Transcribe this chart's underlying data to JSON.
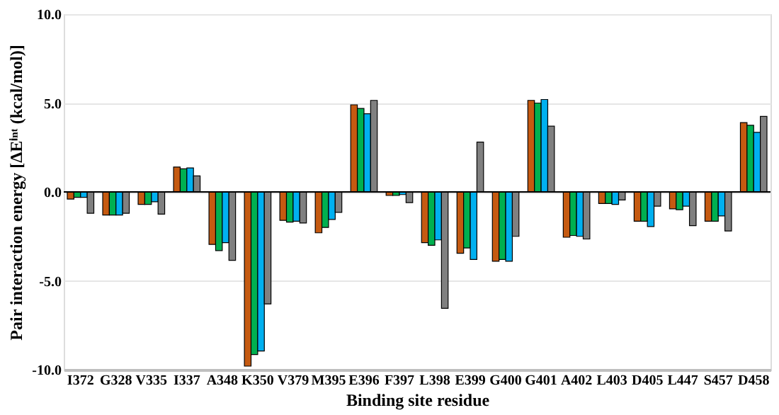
{
  "chart_data": {
    "type": "bar",
    "xlabel": "Binding site residue",
    "ylabel": "Pair interaction energy [ΔEⁱⁿᵗ (kcal/mol)]",
    "categories": [
      "I372",
      "G328",
      "V335",
      "I337",
      "A348",
      "K350",
      "V379",
      "M395",
      "E396",
      "F397",
      "L398",
      "E399",
      "G400",
      "G401",
      "A402",
      "L403",
      "D405",
      "L447",
      "S457",
      "D458"
    ],
    "series": [
      {
        "color": "#c55a11",
        "values": [
          -0.4,
          -1.3,
          -0.7,
          1.4,
          -2.95,
          -9.8,
          -1.6,
          -2.3,
          4.9,
          -0.2,
          -2.85,
          -3.45,
          -3.9,
          5.15,
          -2.55,
          -0.65,
          -1.65,
          -0.95,
          -1.65,
          3.9
        ]
      },
      {
        "color": "#00b050",
        "values": [
          -0.3,
          -1.3,
          -0.7,
          1.3,
          -3.3,
          -9.15,
          -1.7,
          -2.0,
          4.7,
          -0.2,
          -3.0,
          -3.15,
          -3.8,
          5.0,
          -2.45,
          -0.65,
          -1.65,
          -1.0,
          -1.65,
          3.75
        ]
      },
      {
        "color": "#00b0f0",
        "values": [
          -0.3,
          -1.3,
          -0.55,
          1.35,
          -2.85,
          -8.95,
          -1.65,
          -1.55,
          4.4,
          -0.15,
          -2.7,
          -3.8,
          -3.9,
          5.2,
          -2.5,
          -0.7,
          -1.95,
          -0.8,
          -1.35,
          3.35
        ]
      },
      {
        "color": "#808080",
        "values": [
          -1.2,
          -1.2,
          -1.25,
          0.9,
          -3.85,
          -6.3,
          -1.75,
          -1.15,
          5.15,
          -0.6,
          -6.55,
          2.8,
          -2.5,
          3.7,
          -2.65,
          -0.45,
          -0.8,
          -1.9,
          -2.2,
          4.25
        ]
      }
    ],
    "ylim": [
      -10,
      10
    ],
    "yticks": [
      {
        "value": -10,
        "label": "-10.0"
      },
      {
        "value": -5,
        "label": "-5.0"
      },
      {
        "value": 0,
        "label": "0.0"
      },
      {
        "value": 5,
        "label": "5.0"
      },
      {
        "value": 10,
        "label": "10.0"
      }
    ],
    "ref_lines": [
      {
        "axis": "y",
        "value": 0,
        "color": "#000000"
      }
    ],
    "grid": "y",
    "legend": false
  }
}
